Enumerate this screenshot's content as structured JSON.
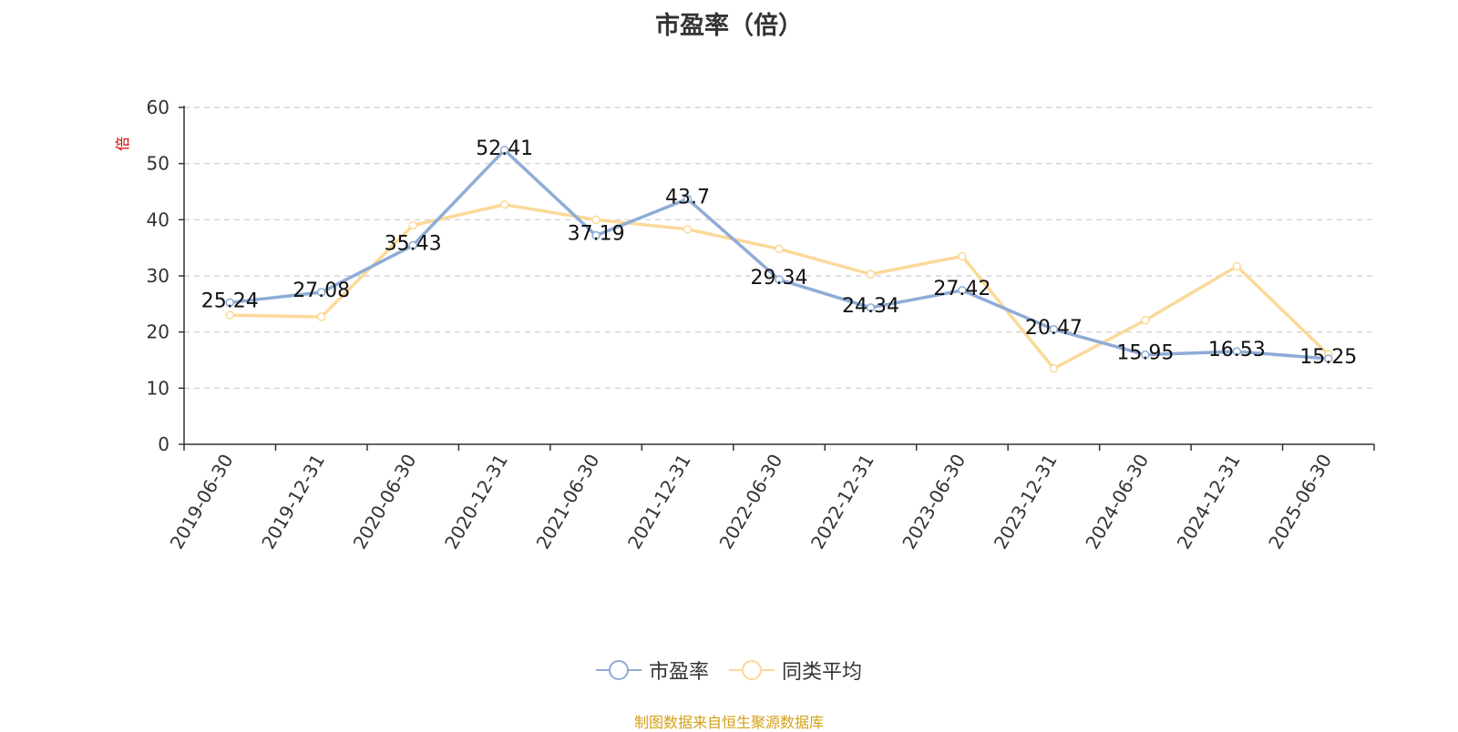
{
  "chart_data": {
    "type": "line",
    "title": "市盈率（倍）",
    "ylabel": "倍",
    "ylim": [
      0,
      60
    ],
    "yticks": [
      0,
      10,
      20,
      30,
      40,
      50,
      60
    ],
    "grid": true,
    "legend_position": "bottom",
    "categories": [
      "2019-06-30",
      "2019-12-31",
      "2020-06-30",
      "2020-12-31",
      "2021-06-30",
      "2021-12-31",
      "2022-06-30",
      "2022-12-31",
      "2023-06-30",
      "2023-12-31",
      "2024-06-30",
      "2024-12-31",
      "2025-06-30"
    ],
    "series": [
      {
        "name": "市盈率",
        "color": "#8eacd6",
        "values": [
          25.24,
          27.08,
          35.43,
          52.41,
          37.19,
          43.7,
          29.34,
          24.34,
          27.42,
          20.47,
          15.95,
          16.53,
          15.25
        ],
        "labels": [
          "25.24",
          "27.08",
          "35.43",
          "52.41",
          "37.19",
          "43.7",
          "29.34",
          "24.34",
          "27.42",
          "20.47",
          "15.95",
          "16.53",
          "15.25"
        ]
      },
      {
        "name": "同类平均",
        "color": "#fbd999",
        "values": [
          23.0,
          22.7,
          39.0,
          42.7,
          40.0,
          38.3,
          34.8,
          30.3,
          33.5,
          13.5,
          22.1,
          31.7,
          16.0
        ]
      }
    ]
  },
  "source_text": "制图数据来自恒生聚源数据库"
}
